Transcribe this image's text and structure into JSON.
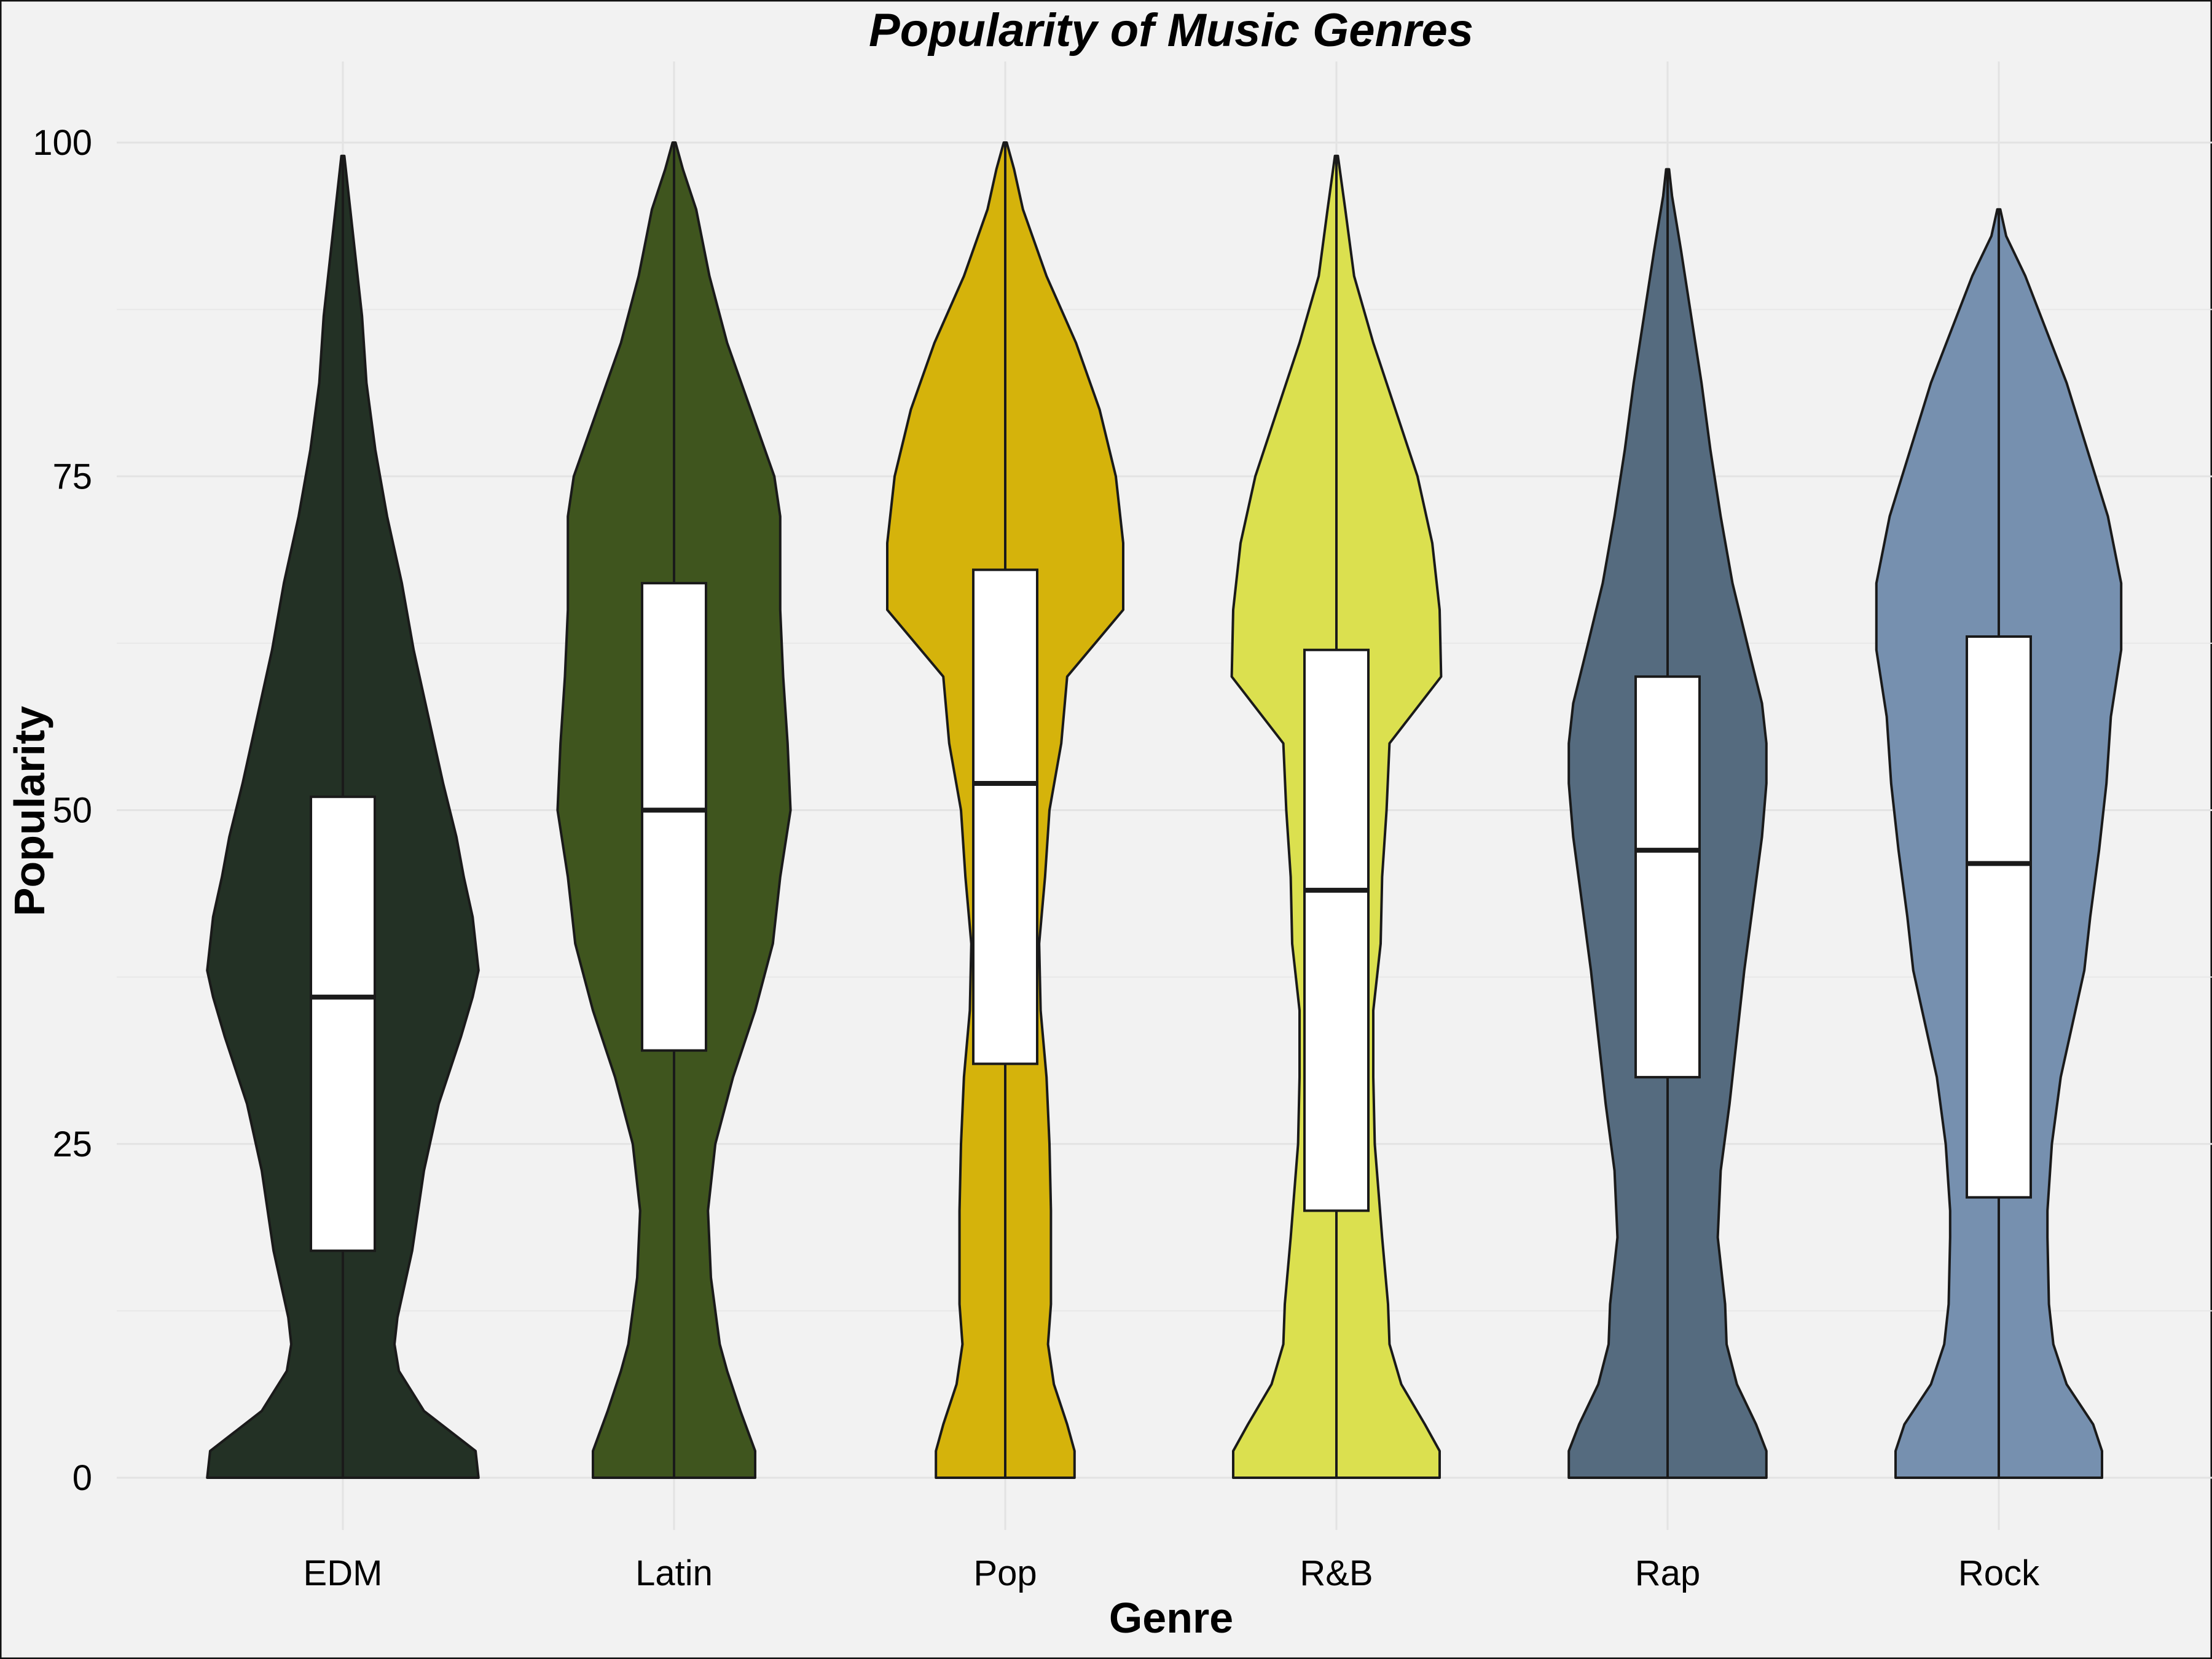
{
  "chart_data": {
    "type": "violin",
    "title": "Popularity of Music Genres",
    "xlabel": "Genre",
    "ylabel": "Popularity",
    "ylim": [
      -2.5,
      102.5
    ],
    "yticks": [
      0,
      25,
      50,
      75,
      100
    ],
    "grid": true,
    "legend": "none",
    "categories": [
      "EDM",
      "Latin",
      "Pop",
      "R&B",
      "Rap",
      "Rock"
    ],
    "colors": [
      "#233125",
      "#3f551e",
      "#d5b30b",
      "#dbe04f",
      "#556b7f",
      "#7690af"
    ],
    "box": [
      {
        "q1": 17,
        "median": 36,
        "q3": 51
      },
      {
        "q1": 32,
        "median": 50,
        "q3": 67
      },
      {
        "q1": 31,
        "median": 52,
        "q3": 68
      },
      {
        "q1": 20,
        "median": 44,
        "q3": 62
      },
      {
        "q1": 30,
        "median": 47,
        "q3": 60
      },
      {
        "q1": 21,
        "median": 46,
        "q3": 63
      }
    ],
    "violins": [
      {
        "max": 99,
        "profile": [
          [
            0,
            0.92
          ],
          [
            2,
            0.9
          ],
          [
            5,
            0.55
          ],
          [
            8,
            0.38
          ],
          [
            10,
            0.35
          ],
          [
            12,
            0.37
          ],
          [
            17,
            0.47
          ],
          [
            23,
            0.55
          ],
          [
            28,
            0.65
          ],
          [
            33,
            0.8
          ],
          [
            36,
            0.88
          ],
          [
            38,
            0.92
          ],
          [
            42,
            0.88
          ],
          [
            45,
            0.82
          ],
          [
            48,
            0.77
          ],
          [
            52,
            0.68
          ],
          [
            57,
            0.58
          ],
          [
            62,
            0.48
          ],
          [
            67,
            0.4
          ],
          [
            72,
            0.3
          ],
          [
            77,
            0.22
          ],
          [
            82,
            0.16
          ],
          [
            87,
            0.13
          ],
          [
            92,
            0.08
          ],
          [
            96,
            0.04
          ],
          [
            99,
            0.01
          ]
        ]
      },
      {
        "max": 100,
        "profile": [
          [
            0,
            0.55
          ],
          [
            2,
            0.55
          ],
          [
            5,
            0.45
          ],
          [
            8,
            0.36
          ],
          [
            10,
            0.31
          ],
          [
            15,
            0.25
          ],
          [
            20,
            0.23
          ],
          [
            25,
            0.28
          ],
          [
            30,
            0.4
          ],
          [
            35,
            0.55
          ],
          [
            40,
            0.67
          ],
          [
            45,
            0.72
          ],
          [
            50,
            0.79
          ],
          [
            55,
            0.77
          ],
          [
            60,
            0.74
          ],
          [
            65,
            0.72
          ],
          [
            70,
            0.72
          ],
          [
            72,
            0.72
          ],
          [
            75,
            0.68
          ],
          [
            80,
            0.52
          ],
          [
            85,
            0.36
          ],
          [
            90,
            0.24
          ],
          [
            95,
            0.15
          ],
          [
            98,
            0.06
          ],
          [
            100,
            0.01
          ]
        ]
      },
      {
        "max": 100,
        "profile": [
          [
            0,
            0.47
          ],
          [
            2,
            0.47
          ],
          [
            4,
            0.42
          ],
          [
            7,
            0.33
          ],
          [
            10,
            0.29
          ],
          [
            13,
            0.31
          ],
          [
            20,
            0.31
          ],
          [
            25,
            0.3
          ],
          [
            30,
            0.28
          ],
          [
            35,
            0.24
          ],
          [
            40,
            0.23
          ],
          [
            45,
            0.27
          ],
          [
            50,
            0.3
          ],
          [
            55,
            0.38
          ],
          [
            60,
            0.42
          ],
          [
            65,
            0.8
          ],
          [
            70,
            0.8
          ],
          [
            75,
            0.75
          ],
          [
            80,
            0.64
          ],
          [
            85,
            0.48
          ],
          [
            90,
            0.28
          ],
          [
            95,
            0.12
          ],
          [
            98,
            0.06
          ],
          [
            100,
            0.01
          ]
        ]
      },
      {
        "max": 99,
        "profile": [
          [
            0,
            0.7
          ],
          [
            2,
            0.7
          ],
          [
            4,
            0.6
          ],
          [
            7,
            0.44
          ],
          [
            10,
            0.36
          ],
          [
            13,
            0.35
          ],
          [
            18,
            0.31
          ],
          [
            25,
            0.26
          ],
          [
            30,
            0.25
          ],
          [
            35,
            0.25
          ],
          [
            40,
            0.3
          ],
          [
            45,
            0.31
          ],
          [
            50,
            0.34
          ],
          [
            55,
            0.36
          ],
          [
            60,
            0.71
          ],
          [
            65,
            0.7
          ],
          [
            70,
            0.65
          ],
          [
            75,
            0.55
          ],
          [
            80,
            0.4
          ],
          [
            85,
            0.25
          ],
          [
            90,
            0.12
          ],
          [
            95,
            0.06
          ],
          [
            99,
            0.01
          ]
        ]
      },
      {
        "max": 98,
        "profile": [
          [
            0,
            0.67
          ],
          [
            2,
            0.67
          ],
          [
            4,
            0.6
          ],
          [
            7,
            0.47
          ],
          [
            10,
            0.4
          ],
          [
            13,
            0.39
          ],
          [
            18,
            0.34
          ],
          [
            23,
            0.36
          ],
          [
            28,
            0.42
          ],
          [
            33,
            0.47
          ],
          [
            38,
            0.52
          ],
          [
            43,
            0.58
          ],
          [
            48,
            0.64
          ],
          [
            52,
            0.67
          ],
          [
            55,
            0.67
          ],
          [
            58,
            0.64
          ],
          [
            62,
            0.55
          ],
          [
            67,
            0.44
          ],
          [
            72,
            0.36
          ],
          [
            77,
            0.29
          ],
          [
            82,
            0.23
          ],
          [
            87,
            0.16
          ],
          [
            92,
            0.09
          ],
          [
            96,
            0.03
          ],
          [
            98,
            0.01
          ]
        ]
      },
      {
        "max": 95,
        "profile": [
          [
            0,
            0.7
          ],
          [
            2,
            0.7
          ],
          [
            4,
            0.64
          ],
          [
            7,
            0.46
          ],
          [
            10,
            0.37
          ],
          [
            13,
            0.34
          ],
          [
            18,
            0.33
          ],
          [
            20,
            0.33
          ],
          [
            25,
            0.36
          ],
          [
            30,
            0.42
          ],
          [
            34,
            0.5
          ],
          [
            38,
            0.58
          ],
          [
            42,
            0.62
          ],
          [
            47,
            0.68
          ],
          [
            52,
            0.73
          ],
          [
            57,
            0.76
          ],
          [
            62,
            0.83
          ],
          [
            67,
            0.83
          ],
          [
            72,
            0.74
          ],
          [
            77,
            0.6
          ],
          [
            82,
            0.46
          ],
          [
            86,
            0.32
          ],
          [
            90,
            0.18
          ],
          [
            93,
            0.05
          ],
          [
            95,
            0.01
          ]
        ]
      }
    ]
  }
}
